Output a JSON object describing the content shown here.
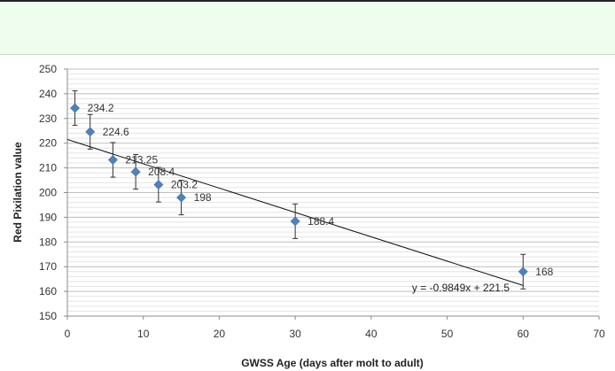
{
  "chart_data": {
    "type": "scatter",
    "xlabel": "GWSS Age (days after molt to adult)",
    "ylabel": "Red Pixilation value",
    "xlim": [
      0,
      70
    ],
    "ylim": [
      150,
      250
    ],
    "x_ticks": [
      0,
      10,
      20,
      30,
      40,
      50,
      60,
      70
    ],
    "y_ticks": [
      150,
      160,
      170,
      180,
      190,
      200,
      210,
      220,
      230,
      240,
      250
    ],
    "grid": true,
    "marker_color": "#4f81bd",
    "points": [
      {
        "x": 1,
        "y": 234.2,
        "label": "234.2",
        "err": 7
      },
      {
        "x": 3,
        "y": 224.6,
        "label": "224.6",
        "err": 7
      },
      {
        "x": 6,
        "y": 213.25,
        "label": "213.25",
        "err": 7
      },
      {
        "x": 9,
        "y": 208.4,
        "label": "208.4",
        "err": 7
      },
      {
        "x": 12,
        "y": 203.2,
        "label": "203.2",
        "err": 7
      },
      {
        "x": 15,
        "y": 198,
        "label": "198",
        "err": 7
      },
      {
        "x": 30,
        "y": 188.4,
        "label": "188.4",
        "err": 7
      },
      {
        "x": 60,
        "y": 168,
        "label": "168",
        "err": 7
      }
    ],
    "trendline": {
      "slope": -0.9849,
      "intercept": 221.5,
      "x_range": [
        0,
        60
      ],
      "equation": "y = -0.9849x + 221.5"
    }
  }
}
